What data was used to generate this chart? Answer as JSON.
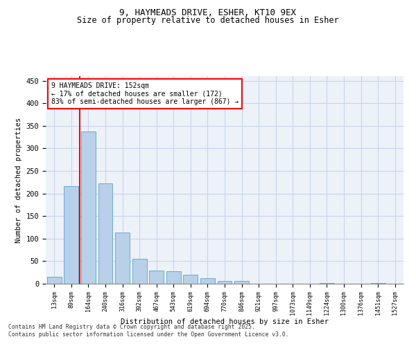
{
  "title_line1": "9, HAYMEADS DRIVE, ESHER, KT10 9EX",
  "title_line2": "Size of property relative to detached houses in Esher",
  "xlabel": "Distribution of detached houses by size in Esher",
  "ylabel": "Number of detached properties",
  "categories": [
    "13sqm",
    "89sqm",
    "164sqm",
    "240sqm",
    "316sqm",
    "392sqm",
    "467sqm",
    "543sqm",
    "619sqm",
    "694sqm",
    "770sqm",
    "846sqm",
    "921sqm",
    "997sqm",
    "1073sqm",
    "1149sqm",
    "1224sqm",
    "1300sqm",
    "1376sqm",
    "1451sqm",
    "1527sqm"
  ],
  "values": [
    15,
    216,
    338,
    222,
    113,
    55,
    29,
    27,
    20,
    12,
    6,
    6,
    0,
    0,
    0,
    0,
    2,
    0,
    0,
    2,
    0
  ],
  "bar_color": "#b8d0e8",
  "bar_edge_color": "#6aaad4",
  "property_line_x": 1.5,
  "property_line_label": "9 HAYMEADS DRIVE: 152sqm",
  "annotation_line2": "← 17% of detached houses are smaller (172)",
  "annotation_line3": "83% of semi-detached houses are larger (867) →",
  "ylim": [
    0,
    460
  ],
  "yticks": [
    0,
    50,
    100,
    150,
    200,
    250,
    300,
    350,
    400,
    450
  ],
  "grid_color": "#c8d4e8",
  "background_color": "#edf2f9",
  "footer_line1": "Contains HM Land Registry data © Crown copyright and database right 2025.",
  "footer_line2": "Contains public sector information licensed under the Open Government Licence v3.0."
}
